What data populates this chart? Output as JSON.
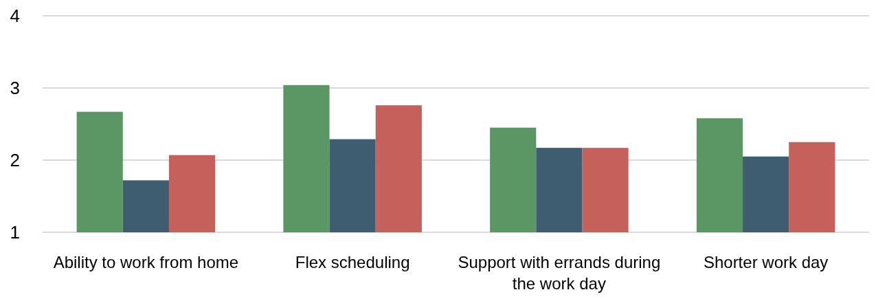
{
  "chart_data": {
    "type": "bar",
    "categories": [
      "Ability to work from home",
      "Flex scheduling",
      "Support with errands during the work day",
      "Shorter work day"
    ],
    "series": [
      {
        "color": "#5b9764",
        "values": [
          2.67,
          3.04,
          2.45,
          2.58
        ]
      },
      {
        "color": "#3f5d70",
        "values": [
          1.72,
          2.29,
          2.17,
          2.05
        ]
      },
      {
        "color": "#c5605a",
        "values": [
          2.07,
          2.76,
          2.17,
          2.25
        ]
      }
    ],
    "ylim": [
      1,
      4
    ],
    "yticks": [
      1,
      2,
      3,
      4
    ],
    "grid": "y"
  }
}
